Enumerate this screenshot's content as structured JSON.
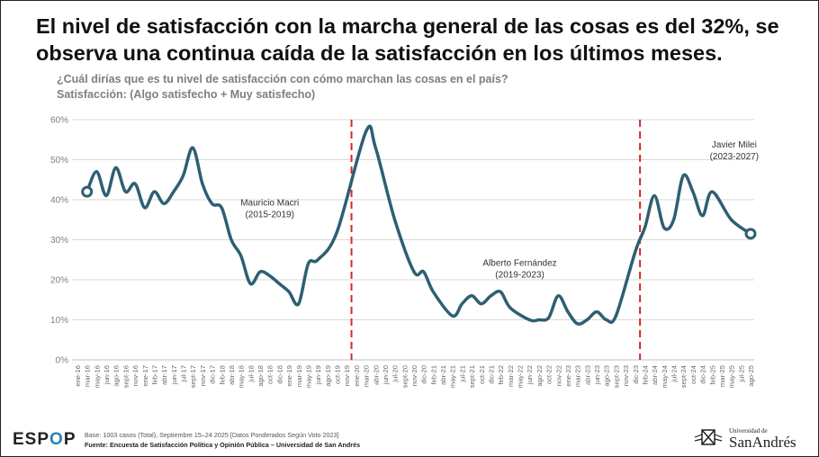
{
  "title": "El nivel de satisfacción con la marcha general de las cosas es del 32%, se observa una continua caída de la satisfacción en los últimos meses.",
  "question": "¿Cuál dirías que es tu nivel de satisfacción con cómo marchan las cosas en el país?",
  "measure": "Satisfacción: (Algo satisfecho + Muy satisfecho)",
  "footer": {
    "logo_left": "ESP",
    "logo_o": "O",
    "logo_right": "P",
    "base": "Base: 1003 casos (Total), Septiembre 15–24 2025 [Datos Ponderados Según Voto 2023]",
    "source": "Fuente: Encuesta de Satisfacción Política y Opinión Pública – Universidad de San Andrés",
    "university_small": "Universidad de",
    "university_big": "SanAndrés"
  },
  "colors": {
    "line": "#2e5f73",
    "divider": "#d62728",
    "grid": "#d9d9d9",
    "axis_text": "#7f7f7f"
  },
  "chart_data": {
    "type": "line",
    "ylim": [
      0,
      60
    ],
    "y_ticks": [
      "0%",
      "10%",
      "20%",
      "30%",
      "40%",
      "50%",
      "60%"
    ],
    "x_labels": [
      "ene-16",
      "mar-16",
      "may-16",
      "jun-16",
      "ago-16",
      "sept-16",
      "nov-16",
      "ene-17",
      "feb-17",
      "abr-17",
      "jun-17",
      "jul-17",
      "sept-17",
      "nov-17",
      "dic-17",
      "feb-18",
      "abr-18",
      "may-18",
      "jul-18",
      "ago-18",
      "oct-18",
      "dic-18",
      "ene-19",
      "mar-19",
      "may-19",
      "jun-19",
      "ago-19",
      "oct-19",
      "nov-19",
      "ene-20",
      "mar-20",
      "abr-20",
      "jun-20",
      "jul-20",
      "sept-20",
      "nov-20",
      "dic-20",
      "feb-21",
      "abr-21",
      "may-21",
      "jul-21",
      "sept-21",
      "oct-21",
      "dic-21",
      "feb-22",
      "mar-22",
      "may-22",
      "jun-22",
      "ago-22",
      "oct-22",
      "nov-22",
      "ene-23",
      "mar-23",
      "abr-23",
      "jun-23",
      "ago-23",
      "sept-23",
      "nov-23",
      "dic-23",
      "feb-24",
      "abr-24",
      "may-24",
      "jul-24",
      "sept-24",
      "oct-24",
      "dic-24",
      "feb-25",
      "mar-25",
      "may-25",
      "jul-25",
      "ago-25"
    ],
    "series": [
      {
        "values": [
          null,
          42,
          47,
          41,
          48,
          42,
          44,
          38,
          42,
          39,
          42,
          46,
          53,
          44,
          39,
          38,
          30,
          26,
          19,
          22,
          21,
          19,
          17,
          14,
          24,
          25,
          32,
          57,
          53,
          35,
          22,
          22,
          17,
          11,
          14,
          16,
          14,
          16,
          17,
          13,
          10,
          10,
          10.5,
          16,
          12,
          9,
          10,
          12,
          10,
          11,
          27,
          33,
          41,
          33,
          35,
          46,
          42,
          36,
          42,
          35,
          31.5
        ],
        "x_index": [
          0,
          1,
          2,
          3,
          4,
          5,
          6,
          7,
          8,
          9,
          10,
          11,
          12,
          13,
          14,
          15,
          16,
          17,
          18,
          19,
          20,
          21,
          22,
          23,
          24,
          25,
          27,
          30,
          31,
          33,
          35,
          36,
          37,
          39,
          40,
          41,
          42,
          43,
          44,
          45,
          47,
          48,
          49,
          50,
          51,
          52,
          53,
          54,
          55,
          56,
          58,
          59,
          60,
          61,
          62,
          63,
          64,
          65,
          66,
          68,
          70
        ]
      }
    ],
    "dividers_after": [
      "nov-19",
      "dic-23"
    ],
    "annotations": [
      {
        "label": "Mauricio Macri",
        "sub": "(2015-2019)"
      },
      {
        "label": "Alberto Fernández",
        "sub": "(2019-2023)"
      },
      {
        "label": "Javier Milei",
        "sub": "(2023-2027)"
      }
    ]
  }
}
